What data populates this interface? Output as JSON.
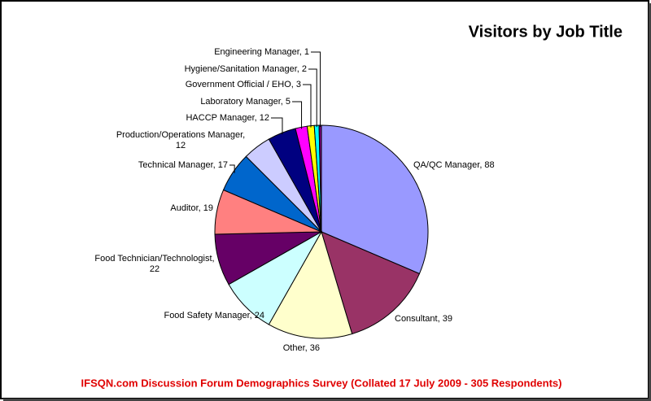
{
  "chart_data": {
    "type": "pie",
    "title": "Visitors by Job Title",
    "subtitle": "IFSQN.com Discussion Forum Demographics Survey (Collated 17 July 2009 - 305 Respondents)",
    "values": [
      88,
      39,
      36,
      24,
      22,
      19,
      17,
      12,
      12,
      5,
      3,
      2,
      1
    ],
    "value_labels": [
      "QA/QC Manager, 88",
      "Consultant, 39",
      "Other, 36",
      "Food Safety Manager, 24",
      "Food Technician/Technologist,\n22",
      "Auditor, 19",
      "Technical Manager, 17",
      "Production/Operations Manager,\n12",
      "HACCP Manager, 12",
      "Laboratory Manager, 5",
      "Government Official / EHO, 3",
      "Hygiene/Sanitation Manager, 2",
      "Engineering Manager, 1"
    ],
    "colors": [
      "#9999ff",
      "#993366",
      "#ffffcc",
      "#ccffff",
      "#660066",
      "#ff8080",
      "#0066cc",
      "#ccccff",
      "#000080",
      "#ff00ff",
      "#ffff00",
      "#00ffff",
      "#800080"
    ]
  }
}
